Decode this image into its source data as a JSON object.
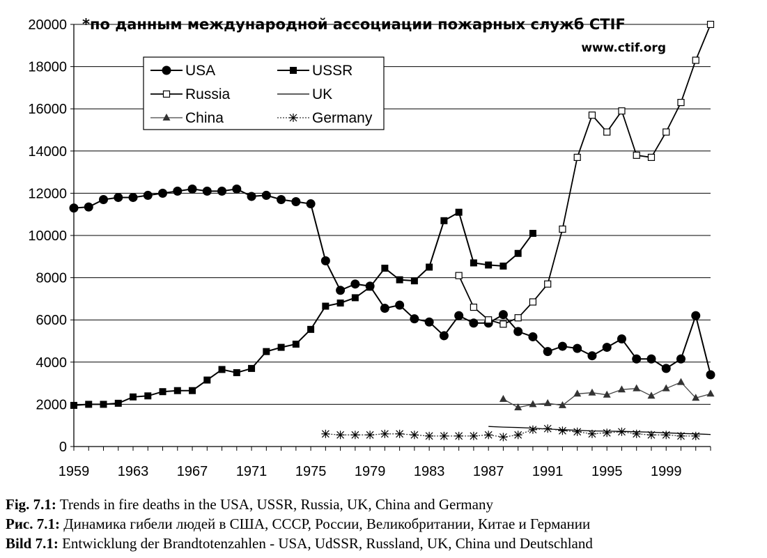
{
  "chart_data": {
    "type": "line",
    "title": "*по данным международной ассоциации пожарных служб CTIF",
    "subtitle": "www.ctif.org",
    "xlabel": "",
    "ylabel": "",
    "xlim": [
      1959,
      2002
    ],
    "ylim": [
      0,
      20000
    ],
    "x_ticks": [
      1959,
      1963,
      1967,
      1971,
      1975,
      1979,
      1983,
      1987,
      1991,
      1995,
      1999
    ],
    "y_ticks": [
      0,
      2000,
      4000,
      6000,
      8000,
      10000,
      12000,
      14000,
      16000,
      18000,
      20000
    ],
    "legend_position": "top-left",
    "series": [
      {
        "name": "USA",
        "marker": "circle",
        "x": [
          1959,
          1960,
          1961,
          1962,
          1963,
          1964,
          1965,
          1966,
          1967,
          1968,
          1969,
          1970,
          1971,
          1972,
          1973,
          1974,
          1975,
          1976,
          1977,
          1978,
          1979,
          1980,
          1981,
          1982,
          1983,
          1984,
          1985,
          1986,
          1987,
          1988,
          1989,
          1990,
          1991,
          1992,
          1993,
          1994,
          1995,
          1996,
          1997,
          1998,
          1999,
          2000,
          2001,
          2002
        ],
        "values": [
          11300,
          11350,
          11700,
          11800,
          11800,
          11900,
          12000,
          12100,
          12200,
          12100,
          12100,
          12200,
          11850,
          11900,
          11700,
          11600,
          11500,
          8800,
          7400,
          7700,
          7600,
          6550,
          6700,
          6050,
          5900,
          5250,
          6200,
          5850,
          5850,
          6250,
          5450,
          5200,
          4500,
          4750,
          4650,
          4300,
          4700,
          5100,
          4150,
          4150,
          3700,
          4150,
          6200,
          3400
        ]
      },
      {
        "name": "USSR",
        "marker": "square",
        "x": [
          1959,
          1960,
          1961,
          1962,
          1963,
          1964,
          1965,
          1966,
          1967,
          1968,
          1969,
          1970,
          1971,
          1972,
          1973,
          1974,
          1975,
          1976,
          1977,
          1978,
          1979,
          1980,
          1981,
          1982,
          1983,
          1984,
          1985,
          1986,
          1987,
          1988,
          1989,
          1990
        ],
        "values": [
          1950,
          2000,
          2000,
          2050,
          2350,
          2400,
          2600,
          2650,
          2650,
          3150,
          3650,
          3500,
          3700,
          4500,
          4700,
          4850,
          5550,
          6650,
          6800,
          7050,
          7550,
          8450,
          7900,
          7850,
          8500,
          10700,
          11100,
          8700,
          8600,
          8550,
          9150,
          10100
        ]
      },
      {
        "name": "Russia",
        "marker": "open-square",
        "x": [
          1985,
          1986,
          1987,
          1988,
          1989,
          1990,
          1991,
          1992,
          1993,
          1994,
          1995,
          1996,
          1997,
          1998,
          1999,
          2000,
          2001,
          2002
        ],
        "values": [
          8100,
          6600,
          6000,
          5800,
          6100,
          6850,
          7700,
          10300,
          13700,
          15700,
          14900,
          15900,
          13800,
          13700,
          14900,
          16300,
          18300,
          20000
        ]
      },
      {
        "name": "UK",
        "marker": "none",
        "x": [
          1987,
          1988,
          1989,
          1990,
          1991,
          1992,
          1993,
          1994,
          1995,
          1996,
          1997,
          1998,
          1999,
          2000,
          2001,
          2002
        ],
        "values": [
          950,
          920,
          900,
          870,
          830,
          800,
          770,
          740,
          730,
          720,
          700,
          680,
          650,
          620,
          600,
          570
        ]
      },
      {
        "name": "China",
        "marker": "triangle",
        "x": [
          1988,
          1989,
          1990,
          1991,
          1992,
          1993,
          1994,
          1995,
          1996,
          1997,
          1998,
          1999,
          2000,
          2001,
          2002
        ],
        "values": [
          2250,
          1850,
          2000,
          2050,
          1950,
          2500,
          2550,
          2450,
          2700,
          2750,
          2400,
          2750,
          3050,
          2300,
          2500
        ]
      },
      {
        "name": "Germany",
        "marker": "asterisk",
        "x": [
          1976,
          1977,
          1978,
          1979,
          1980,
          1981,
          1982,
          1983,
          1984,
          1985,
          1986,
          1987,
          1988,
          1989,
          1990,
          1991,
          1992,
          1993,
          1994,
          1995,
          1996,
          1997,
          1998,
          1999,
          2000,
          2001
        ],
        "values": [
          600,
          550,
          550,
          550,
          600,
          600,
          550,
          500,
          500,
          500,
          500,
          550,
          450,
          550,
          800,
          850,
          750,
          700,
          600,
          650,
          700,
          600,
          550,
          550,
          500,
          500
        ]
      }
    ]
  },
  "captions": [
    {
      "label": "Fig. 7.1:",
      "text": " Trends in fire deaths in the USA, USSR, Russia, UK, China and Germany"
    },
    {
      "label": "Рис. 7.1:",
      "text": " Динамика гибели людей в США, СССР, России, Великобритании, Китае и Германии"
    },
    {
      "label": "Bild 7.1:",
      "text": " Entwicklung der Brandtotenzahlen - USA, UdSSR, Russland, UK, China und Deutschland"
    }
  ]
}
